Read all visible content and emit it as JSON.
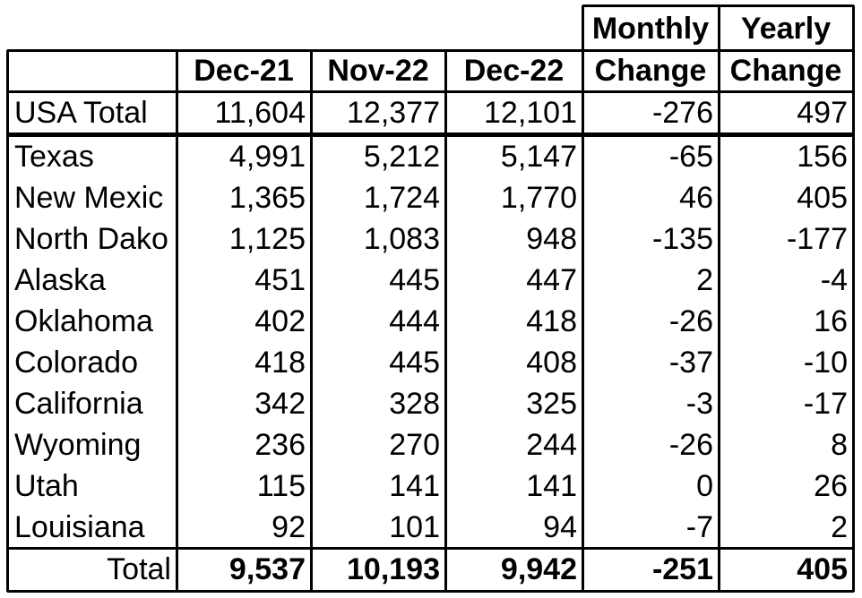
{
  "table": {
    "header_top": [
      "Monthly",
      "Yearly"
    ],
    "header_bottom": [
      "Dec-21",
      "Nov-22",
      "Dec-22",
      "Change",
      "Change"
    ],
    "summary": [
      "USA Total",
      "11,604",
      "12,377",
      "12,101",
      "-276",
      "497"
    ],
    "rows": [
      [
        "Texas",
        "4,991",
        "5,212",
        "5,147",
        "-65",
        "156"
      ],
      [
        "New Mexic",
        "1,365",
        "1,724",
        "1,770",
        "46",
        "405"
      ],
      [
        "North Dako",
        "1,125",
        "1,083",
        "948",
        "-135",
        "-177"
      ],
      [
        "Alaska",
        "451",
        "445",
        "447",
        "2",
        "-4"
      ],
      [
        "Oklahoma",
        "402",
        "444",
        "418",
        "-26",
        "16"
      ],
      [
        "Colorado",
        "418",
        "445",
        "408",
        "-37",
        "-10"
      ],
      [
        "California",
        "342",
        "328",
        "325",
        "-3",
        "-17"
      ],
      [
        "Wyoming",
        "236",
        "270",
        "244",
        "-26",
        "8"
      ],
      [
        "Utah",
        "115",
        "141",
        "141",
        "0",
        "26"
      ],
      [
        "Louisiana",
        "92",
        "101",
        "94",
        "-7",
        "2"
      ]
    ],
    "total": [
      "Total",
      "9,537",
      "10,193",
      "9,942",
      "-251",
      "405"
    ]
  }
}
